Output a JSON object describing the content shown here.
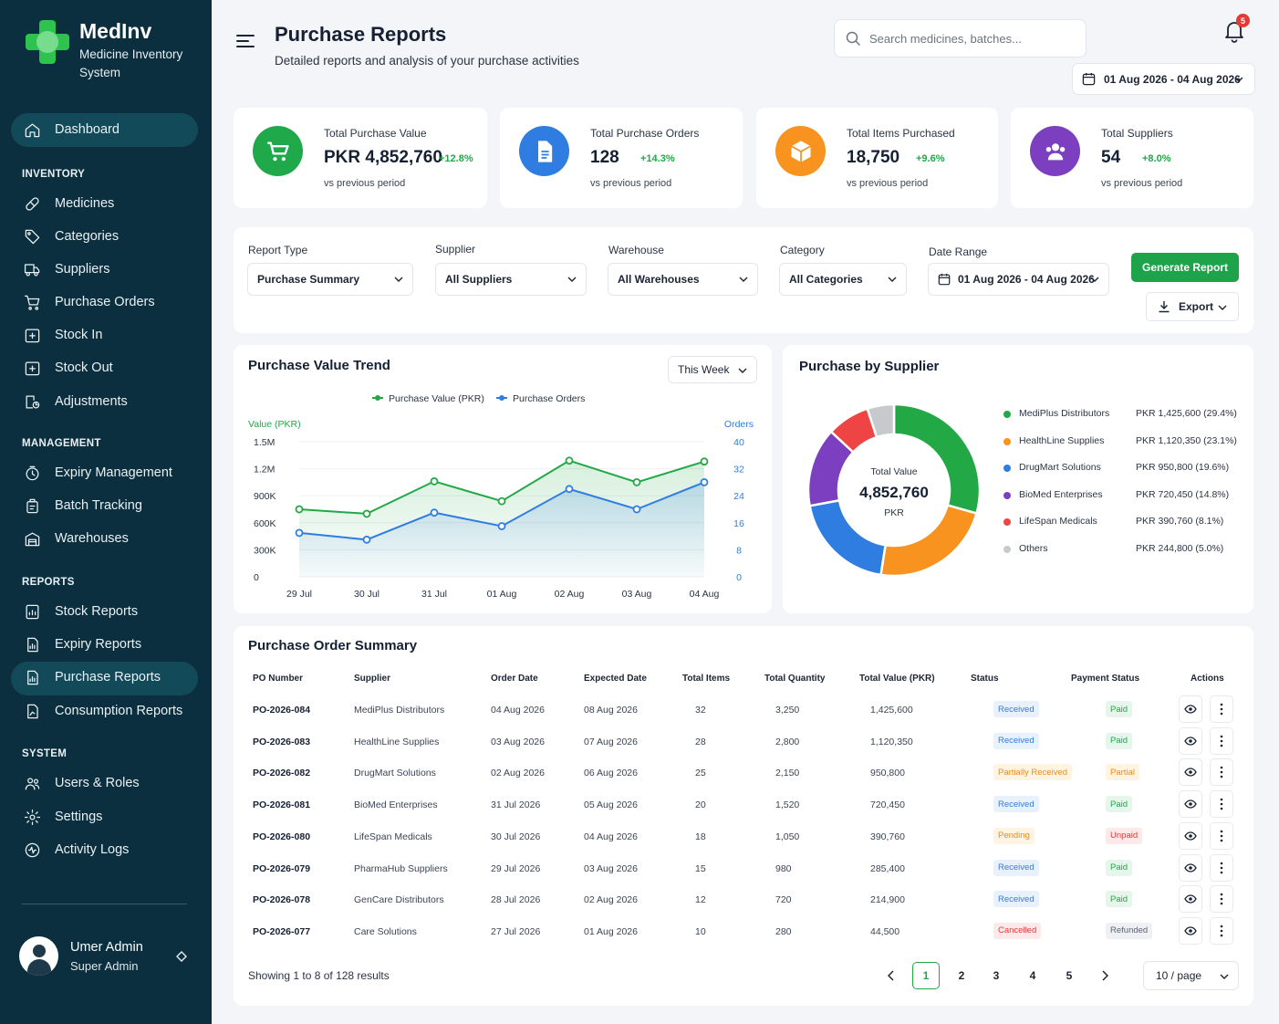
{
  "brand": {
    "name": "MedInv",
    "subtitle": "Medicine Inventory System"
  },
  "sidebar": {
    "dashboard": "Dashboard",
    "sections": [
      "INVENTORY",
      "MANAGEMENT",
      "REPORTS",
      "SYSTEM"
    ],
    "items": [
      {
        "label": "Medicines",
        "icon": "pill-icon"
      },
      {
        "label": "Categories",
        "icon": "tag-icon"
      },
      {
        "label": "Suppliers",
        "icon": "truck-icon"
      },
      {
        "label": "Purchase Orders",
        "icon": "cart-icon"
      },
      {
        "label": "Stock In",
        "icon": "stock-in-icon"
      },
      {
        "label": "Stock Out",
        "icon": "stock-out-icon"
      },
      {
        "label": "Adjustments",
        "icon": "adjust-icon"
      },
      {
        "label": "Expiry Management",
        "icon": "clock-icon"
      },
      {
        "label": "Batch Tracking",
        "icon": "batch-icon"
      },
      {
        "label": "Warehouses",
        "icon": "warehouse-icon"
      },
      {
        "label": "Stock Reports",
        "icon": "report-icon"
      },
      {
        "label": "Expiry Reports",
        "icon": "report-icon"
      },
      {
        "label": "Purchase Reports",
        "icon": "report-icon"
      },
      {
        "label": "Consumption Reports",
        "icon": "report-icon"
      },
      {
        "label": "Users & Roles",
        "icon": "users-icon"
      },
      {
        "label": "Settings",
        "icon": "gear-icon"
      },
      {
        "label": "Activity Logs",
        "icon": "activity-icon"
      }
    ],
    "user": {
      "name": "Umer Admin",
      "role": "Super Admin"
    }
  },
  "header": {
    "title": "Purchase Reports",
    "subtitle": "Detailed reports and analysis of your purchase activities",
    "search_placeholder": "Search medicines, batches...",
    "notifications": "5",
    "date_range": "01 Aug 2026 - 04 Aug 2026"
  },
  "stats": [
    {
      "label": "Total Purchase Value",
      "value": "PKR 4,852,760",
      "delta": "+12.8%",
      "foot": "vs previous period",
      "color": "#1fa94a",
      "icon": "cart-icon"
    },
    {
      "label": "Total Purchase Orders",
      "value": "128",
      "delta": "+14.3%",
      "foot": "vs previous period",
      "color": "#2f7de1",
      "icon": "document-icon"
    },
    {
      "label": "Total Items Purchased",
      "value": "18,750",
      "delta": "+9.6%",
      "foot": "vs previous period",
      "color": "#f7931e",
      "icon": "box-icon"
    },
    {
      "label": "Total Suppliers",
      "value": "54",
      "delta": "+8.0%",
      "foot": "vs previous period",
      "color": "#7b3fbf",
      "icon": "users-icon"
    }
  ],
  "filters": {
    "report_type": {
      "label": "Report Type",
      "value": "Purchase Summary"
    },
    "supplier": {
      "label": "Supplier",
      "value": "All Suppliers"
    },
    "warehouse": {
      "label": "Warehouse",
      "value": "All Warehouses"
    },
    "category": {
      "label": "Category",
      "value": "All Categories"
    },
    "date_range": {
      "label": "Date Range",
      "value": "01 Aug 2026 - 04 Aug 2026"
    },
    "generate": "Generate Report",
    "export": "Export"
  },
  "chart_data": [
    {
      "type": "line",
      "title": "Purchase Value Trend",
      "period": "This Week",
      "x": [
        "29 Jul",
        "30 Jul",
        "31 Jul",
        "01 Aug",
        "02 Aug",
        "03 Aug",
        "04 Aug"
      ],
      "ylabel": "Value (PKR)",
      "y2label": "Orders",
      "yticks": [
        "0",
        "300K",
        "600K",
        "900K",
        "1.2M",
        "1.5M"
      ],
      "y2ticks": [
        "0",
        "8",
        "16",
        "24",
        "32",
        "40"
      ],
      "ylim": [
        0,
        1500000
      ],
      "y2lim": [
        0,
        40
      ],
      "legend": "top-center",
      "series": [
        {
          "name": "Purchase Value (PKR)",
          "axis": "left",
          "color": "#22a845",
          "values": [
            750000,
            700000,
            1060000,
            840000,
            1290000,
            1050000,
            1280000
          ]
        },
        {
          "name": "Purchase Orders",
          "axis": "right",
          "color": "#2f7de1",
          "values": [
            13,
            11,
            19,
            15,
            26,
            20,
            28
          ]
        }
      ]
    },
    {
      "type": "pie",
      "title": "Purchase by Supplier",
      "center_label": "Total Value",
      "center_value": "4,852,760",
      "center_unit": "PKR",
      "legend": "right",
      "slices": [
        {
          "name": "MediPlus Distributors",
          "value": 1425600,
          "display": "PKR 1,425,600 (29.4%)",
          "color": "#22a845"
        },
        {
          "name": "HealthLine Supplies",
          "value": 1120350,
          "display": "PKR 1,120,350 (23.1%)",
          "color": "#f7931e"
        },
        {
          "name": "DrugMart Solutions",
          "value": 950800,
          "display": "PKR 950,800 (19.6%)",
          "color": "#2f7de1"
        },
        {
          "name": "BioMed Enterprises",
          "value": 720450,
          "display": "PKR 720,450 (14.8%)",
          "color": "#7b3fbf"
        },
        {
          "name": "LifeSpan Medicals",
          "value": 390760,
          "display": "PKR 390,760 (8.1%)",
          "color": "#ef4444"
        },
        {
          "name": "Others",
          "value": 244800,
          "display": "PKR 244,800 (5.0%)",
          "color": "#c7c9cc"
        }
      ]
    }
  ],
  "table": {
    "title": "Purchase Order Summary",
    "columns": [
      "PO Number",
      "Supplier",
      "Order Date",
      "Expected Date",
      "Total Items",
      "Total Quantity",
      "Total Value (PKR)",
      "Status",
      "Payment Status",
      "Actions"
    ],
    "rows": [
      {
        "po": "PO-2026-084",
        "supplier": "MediPlus Distributors",
        "order": "04 Aug 2026",
        "expected": "08 Aug 2026",
        "items": "32",
        "qty": "3,250",
        "value": "1,425,600",
        "status": "Received",
        "status_kind": "received",
        "payment": "Paid",
        "payment_kind": "paid"
      },
      {
        "po": "PO-2026-083",
        "supplier": "HealthLine Supplies",
        "order": "03 Aug 2026",
        "expected": "07 Aug 2026",
        "items": "28",
        "qty": "2,800",
        "value": "1,120,350",
        "status": "Received",
        "status_kind": "received",
        "payment": "Paid",
        "payment_kind": "paid"
      },
      {
        "po": "PO-2026-082",
        "supplier": "DrugMart Solutions",
        "order": "02 Aug 2026",
        "expected": "06 Aug 2026",
        "items": "25",
        "qty": "2,150",
        "value": "950,800",
        "status": "Partially Received",
        "status_kind": "partial",
        "payment": "Partial",
        "payment_kind": "partial"
      },
      {
        "po": "PO-2026-081",
        "supplier": "BioMed Enterprises",
        "order": "31 Jul 2026",
        "expected": "05 Aug 2026",
        "items": "20",
        "qty": "1,520",
        "value": "720,450",
        "status": "Received",
        "status_kind": "received",
        "payment": "Paid",
        "payment_kind": "paid"
      },
      {
        "po": "PO-2026-080",
        "supplier": "LifeSpan Medicals",
        "order": "30 Jul 2026",
        "expected": "04 Aug 2026",
        "items": "18",
        "qty": "1,050",
        "value": "390,760",
        "status": "Pending",
        "status_kind": "pending",
        "payment": "Unpaid",
        "payment_kind": "unpaid"
      },
      {
        "po": "PO-2026-079",
        "supplier": "PharmaHub Suppliers",
        "order": "29 Jul 2026",
        "expected": "03 Aug 2026",
        "items": "15",
        "qty": "980",
        "value": "285,400",
        "status": "Received",
        "status_kind": "received",
        "payment": "Paid",
        "payment_kind": "paid"
      },
      {
        "po": "PO-2026-078",
        "supplier": "GenCare Distributors",
        "order": "28 Jul 2026",
        "expected": "02 Aug 2026",
        "items": "12",
        "qty": "720",
        "value": "214,900",
        "status": "Received",
        "status_kind": "received",
        "payment": "Paid",
        "payment_kind": "paid"
      },
      {
        "po": "PO-2026-077",
        "supplier": "Care Solutions",
        "order": "27 Jul 2026",
        "expected": "01 Aug 2026",
        "items": "10",
        "qty": "280",
        "value": "44,500",
        "status": "Cancelled",
        "status_kind": "cancelled",
        "payment": "Refunded",
        "payment_kind": "refunded"
      }
    ],
    "footer": "Showing 1 to 8 of 128 results",
    "pages": [
      "1",
      "2",
      "3",
      "4",
      "5"
    ],
    "per_page": "10 / page"
  },
  "colors": {
    "sidebar": "#0b2f3f",
    "accent": "#1ea24a",
    "active_nav": "#124a5a"
  }
}
